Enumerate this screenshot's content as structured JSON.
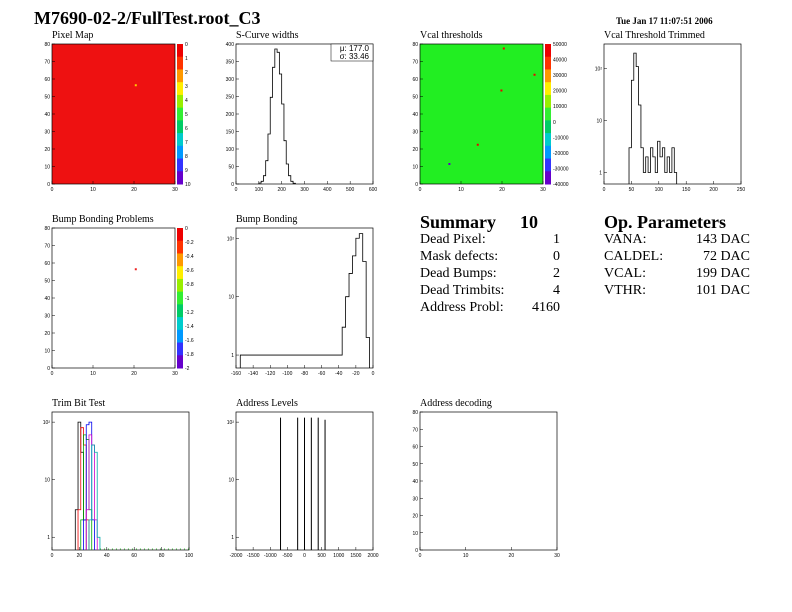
{
  "title": "M7690-02-2/FullTest.root_C3",
  "timestamp": "Tue Jan 17 11:07:51 2006",
  "colors": {
    "pixel_map_fill": "#ee1111",
    "vcal_fill": "#22ee22",
    "line": "#000000",
    "trim_series": [
      "#000000",
      "#ee0000",
      "#00aa00",
      "#0000ee",
      "#cc00cc",
      "#00aaaa"
    ]
  },
  "summary": {
    "title": "Summary",
    "total": "10",
    "rows": [
      {
        "label": "Dead Pixel:",
        "value": "1"
      },
      {
        "label": "Mask defects:",
        "value": "0"
      },
      {
        "label": "Dead Bumps:",
        "value": "2"
      },
      {
        "label": "Dead Trimbits:",
        "value": "4"
      },
      {
        "label": "Address Probl:",
        "value": "4160"
      }
    ]
  },
  "op_params": {
    "title": "Op. Parameters",
    "rows": [
      {
        "label": "VANA:",
        "value": "143 DAC"
      },
      {
        "label": "CALDEL:",
        "value": "72 DAC"
      },
      {
        "label": "VCAL:",
        "value": "199 DAC"
      },
      {
        "label": "VTHR:",
        "value": "101 DAC"
      }
    ]
  },
  "chart_data": [
    {
      "id": "pixel_map",
      "title": "Pixel Map",
      "type": "heatmap",
      "xlim": [
        0,
        32
      ],
      "ylim": [
        0,
        80
      ],
      "x_ticks": [
        "0",
        "10",
        "20",
        "30"
      ],
      "y_ticks": [
        "0",
        "10",
        "20",
        "30",
        "40",
        "50",
        "60",
        "70",
        "80"
      ],
      "colorbar_ticks": [
        "0",
        "1",
        "2",
        "3",
        "4",
        "5",
        "6",
        "7",
        "8",
        "9",
        "10"
      ],
      "fill_value": 10,
      "special_pixels": [
        {
          "col": 35,
          "row": 56,
          "value": 7
        }
      ]
    },
    {
      "id": "scurve_widths",
      "title": "S-Curve widths",
      "type": "histogram",
      "xlim": [
        0,
        600
      ],
      "ylim": [
        0,
        420
      ],
      "x_ticks": [
        "0",
        "100",
        "200",
        "300",
        "400",
        "500",
        "600"
      ],
      "y_ticks": [
        "0",
        "50",
        "100",
        "150",
        "200",
        "250",
        "300",
        "350",
        "400"
      ],
      "stats": [
        "μ: 177.0",
        "σ: 33.46"
      ],
      "x": [
        100,
        110,
        120,
        130,
        140,
        150,
        160,
        170,
        180,
        190,
        200,
        210,
        220,
        230,
        240,
        250
      ],
      "values": [
        3,
        8,
        25,
        70,
        150,
        260,
        350,
        405,
        395,
        330,
        240,
        130,
        60,
        25,
        8,
        2
      ]
    },
    {
      "id": "vcal_thresholds",
      "title": "Vcal thresholds",
      "type": "heatmap",
      "xlim": [
        0,
        32
      ],
      "ylim": [
        0,
        80
      ],
      "x_ticks": [
        "0",
        "10",
        "20",
        "30"
      ],
      "y_ticks": [
        "0",
        "10",
        "20",
        "30",
        "40",
        "50",
        "60",
        "70",
        "80"
      ],
      "colorbar_ticks": [
        "50000",
        "40000",
        "30000",
        "20000",
        "10000",
        "0",
        "-10000",
        "-20000",
        "-30000",
        "-40000"
      ],
      "fill_value": 0,
      "special_pixels": [
        {
          "col": 35,
          "row": 77,
          "value": 50000
        },
        {
          "col": 48,
          "row": 62,
          "value": 50000
        },
        {
          "col": 34,
          "row": 53,
          "value": 50000
        },
        {
          "col": 24,
          "row": 22,
          "value": 50000
        },
        {
          "col": 12,
          "row": 11,
          "value": -40000
        }
      ]
    },
    {
      "id": "vcal_trimmed",
      "title": "Vcal Threshold Trimmed",
      "type": "histogram",
      "scale": "log",
      "xlim": [
        0,
        230
      ],
      "ylim": [
        0.6,
        300
      ],
      "x_ticks": [
        "0",
        "50",
        "100",
        "150",
        "200",
        "250"
      ],
      "y_ticks": [
        "1",
        "10",
        "10²"
      ],
      "x": [
        42,
        46,
        50,
        54,
        58,
        62,
        66,
        70,
        74,
        78,
        82,
        86,
        90,
        94,
        98,
        102,
        106,
        110,
        114,
        118
      ],
      "values": [
        3,
        60,
        200,
        110,
        20,
        3,
        1,
        2,
        1,
        3,
        2,
        1,
        4,
        2,
        3,
        1,
        2,
        1,
        3,
        1
      ]
    },
    {
      "id": "bump_problems",
      "title": "Bump Bonding Problems",
      "type": "heatmap",
      "xlim": [
        0,
        32
      ],
      "ylim": [
        0,
        80
      ],
      "x_ticks": [
        "0",
        "10",
        "20",
        "30"
      ],
      "y_ticks": [
        "0",
        "10",
        "20",
        "30",
        "40",
        "50",
        "60",
        "70",
        "80"
      ],
      "colorbar_ticks": [
        "0",
        "-0.2",
        "-0.4",
        "-0.6",
        "-0.8",
        "-1",
        "-1.2",
        "-1.4",
        "-1.6",
        "-1.8",
        "-2"
      ],
      "fill_value": null,
      "special_pixels": [
        {
          "col": 35,
          "row": 56,
          "value": 0
        }
      ]
    },
    {
      "id": "bump_bonding",
      "title": "Bump Bonding",
      "type": "histogram",
      "scale": "log",
      "xlim": [
        -160,
        0
      ],
      "ylim": [
        0.6,
        150
      ],
      "x_ticks": [
        "-160",
        "-140",
        "-120",
        "-100",
        "-80",
        "-60",
        "-40",
        "-20",
        "0"
      ],
      "y_ticks": [
        "1",
        "10",
        "10²"
      ],
      "x": [
        -155,
        -40,
        -36,
        -32,
        -28,
        -24,
        -20,
        -16,
        -12,
        -8
      ],
      "values": [
        1,
        1,
        3,
        10,
        25,
        50,
        100,
        120,
        40,
        2
      ]
    },
    {
      "id": "trim_bit_test",
      "title": "Trim Bit Test",
      "type": "histogram",
      "scale": "log",
      "xlim": [
        0,
        100
      ],
      "ylim": [
        0.6,
        150
      ],
      "x_ticks": [
        "0",
        "20",
        "40",
        "60",
        "80",
        "100"
      ],
      "y_ticks": [
        "1",
        "10",
        "10²"
      ],
      "series": [
        {
          "x": [
            17,
            19,
            21,
            23
          ],
          "values": [
            3,
            100,
            30,
            2
          ]
        },
        {
          "x": [
            19,
            21,
            23,
            25
          ],
          "values": [
            3,
            80,
            40,
            2
          ]
        },
        {
          "x": [
            21,
            23,
            25,
            27
          ],
          "values": [
            2,
            60,
            50,
            3
          ]
        },
        {
          "x": [
            23,
            25,
            27,
            29
          ],
          "values": [
            2,
            90,
            100,
            2
          ]
        },
        {
          "x": [
            25,
            27,
            29,
            31
          ],
          "values": [
            3,
            60,
            40,
            2
          ]
        },
        {
          "x": [
            27,
            29,
            31,
            33
          ],
          "values": [
            2,
            40,
            30,
            1
          ]
        }
      ]
    },
    {
      "id": "address_levels",
      "title": "Address Levels",
      "type": "histogram",
      "scale": "log",
      "xlim": [
        -2000,
        2000
      ],
      "ylim": [
        0.6,
        150
      ],
      "x_ticks": [
        "-2000",
        "-1500",
        "-1000",
        "-500",
        "0",
        "500",
        "1000",
        "1500",
        "2000"
      ],
      "y_ticks": [
        "1",
        "10",
        "10²"
      ],
      "x": [
        -700,
        -200,
        0,
        200,
        400,
        600
      ],
      "values": [
        120,
        120,
        120,
        120,
        120,
        110
      ]
    },
    {
      "id": "address_decoding",
      "title": "Address decoding",
      "type": "heatmap",
      "xlim": [
        0,
        32
      ],
      "ylim": [
        0,
        80
      ],
      "x_ticks": [
        "0",
        "10",
        "20",
        "30"
      ],
      "y_ticks": [
        "0",
        "10",
        "20",
        "30",
        "40",
        "50",
        "60",
        "70",
        "80"
      ],
      "fill_value": null,
      "special_pixels": []
    }
  ]
}
